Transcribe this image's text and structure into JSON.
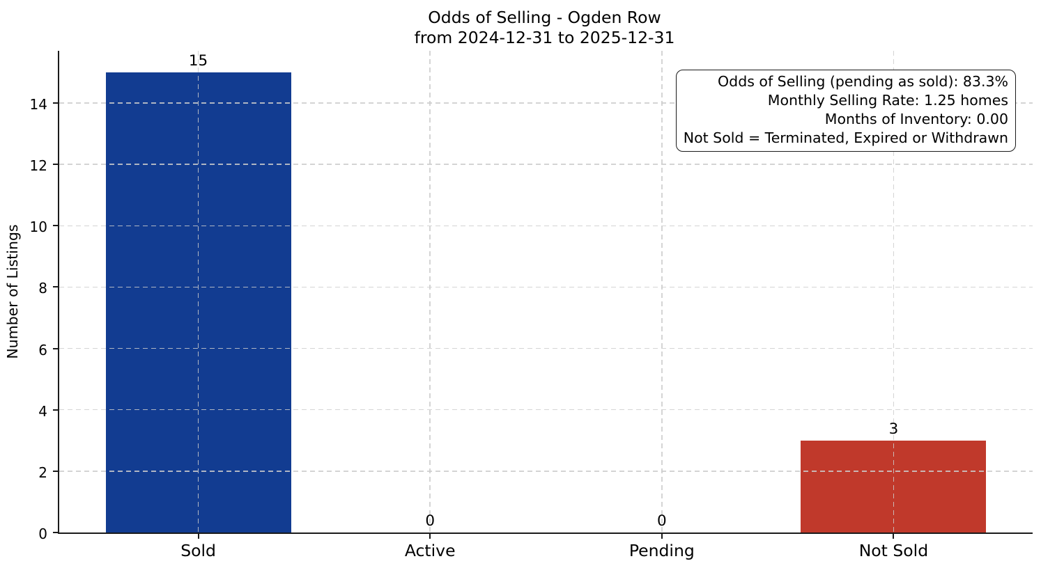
{
  "chart_data": {
    "type": "bar",
    "title": "Odds of Selling - Ogden Row",
    "subtitle": "from 2024-12-31 to 2025-12-31",
    "ylabel": "Number of Listings",
    "xlabel": "",
    "categories": [
      "Sold",
      "Active",
      "Pending",
      "Not Sold"
    ],
    "values": [
      15,
      0,
      0,
      3
    ],
    "value_labels": [
      "15",
      "0",
      "0",
      "3"
    ],
    "bar_colors": [
      "#123c91",
      null,
      null,
      "#c0392b"
    ],
    "ylim": [
      0,
      15.7
    ],
    "yticks": [
      0,
      2,
      4,
      6,
      8,
      10,
      12,
      14
    ],
    "xlim": [
      -0.6,
      3.6
    ],
    "bar_width": 0.8,
    "grid": true,
    "grid_linestyle": "dashed",
    "grid_color": "#cccccc",
    "spine_color": "#1a1a1a",
    "text_color": "#000000",
    "legend_position": "none",
    "annotation_lines": [
      "Odds of Selling (pending as sold): 83.3%",
      "Monthly Selling Rate: 1.25 homes",
      "Months of Inventory: 0.00",
      "Not Sold = Terminated, Expired or Withdrawn"
    ]
  }
}
